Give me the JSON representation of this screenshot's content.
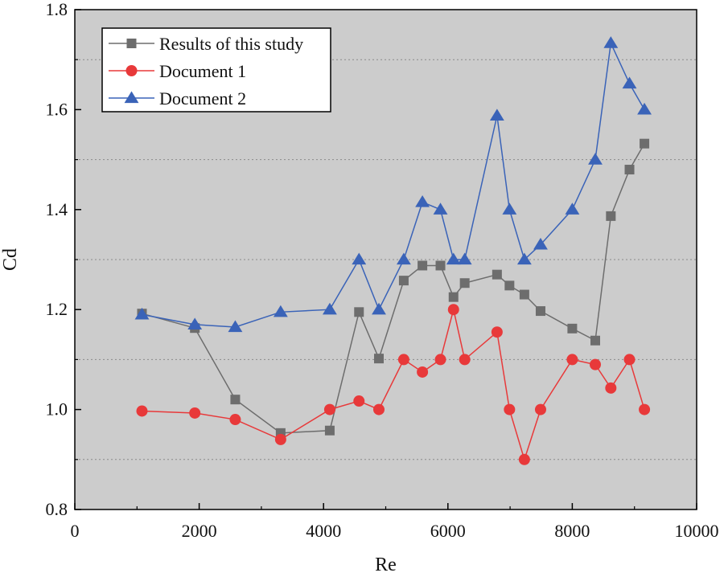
{
  "chart_data": {
    "type": "line",
    "xlabel": "Re",
    "ylabel": "Cd",
    "xlim": [
      0,
      10000
    ],
    "ylim": [
      0.8,
      1.8
    ],
    "x_ticks": [
      0,
      2000,
      4000,
      6000,
      8000,
      10000
    ],
    "x_tick_labels": [
      "0",
      "2000",
      "4000",
      "6000",
      "8000",
      "10000"
    ],
    "y_ticks": [
      0.8,
      1.0,
      1.2,
      1.4,
      1.6,
      1.8
    ],
    "y_tick_labels": [
      "0.8",
      "1.0",
      "1.2",
      "1.4",
      "1.6",
      "1.8"
    ],
    "grid": "horizontal dotted",
    "plot_background": "#cccccc",
    "legend_position": "top-left",
    "series": [
      {
        "name": "Results of this study",
        "color": "#6d6d6d",
        "marker": "square",
        "x": [
          1080,
          1930,
          2580,
          3310,
          4100,
          4570,
          4890,
          5290,
          5590,
          5880,
          6090,
          6270,
          6790,
          6990,
          7230,
          7490,
          8000,
          8370,
          8620,
          8920,
          9160
        ],
        "y": [
          1.192,
          1.163,
          1.02,
          0.953,
          0.958,
          1.195,
          1.102,
          1.258,
          1.288,
          1.288,
          1.225,
          1.253,
          1.27,
          1.248,
          1.23,
          1.197,
          1.162,
          1.138,
          1.387,
          1.48,
          1.532
        ]
      },
      {
        "name": "Document 1",
        "color": "#e8393a",
        "marker": "circle",
        "x": [
          1080,
          1930,
          2580,
          3310,
          4100,
          4570,
          4890,
          5290,
          5590,
          5880,
          6090,
          6270,
          6790,
          6990,
          7230,
          7490,
          8000,
          8370,
          8620,
          8920,
          9160
        ],
        "y": [
          0.997,
          0.993,
          0.98,
          0.94,
          1.0,
          1.017,
          1.0,
          1.1,
          1.075,
          1.1,
          1.2,
          1.1,
          1.155,
          1.0,
          0.9,
          1.0,
          1.1,
          1.09,
          1.043,
          1.1,
          1.0
        ]
      },
      {
        "name": "Document 2",
        "color": "#3a63b8",
        "marker": "triangle",
        "x": [
          1080,
          1930,
          2580,
          3310,
          4100,
          4570,
          4890,
          5290,
          5590,
          5880,
          6090,
          6270,
          6790,
          6990,
          7230,
          7490,
          8000,
          8370,
          8620,
          8920,
          9160
        ],
        "y": [
          1.19,
          1.17,
          1.165,
          1.195,
          1.2,
          1.3,
          1.2,
          1.3,
          1.415,
          1.4,
          1.3,
          1.3,
          1.588,
          1.4,
          1.3,
          1.33,
          1.4,
          1.5,
          1.733,
          1.652,
          1.6
        ]
      }
    ]
  }
}
